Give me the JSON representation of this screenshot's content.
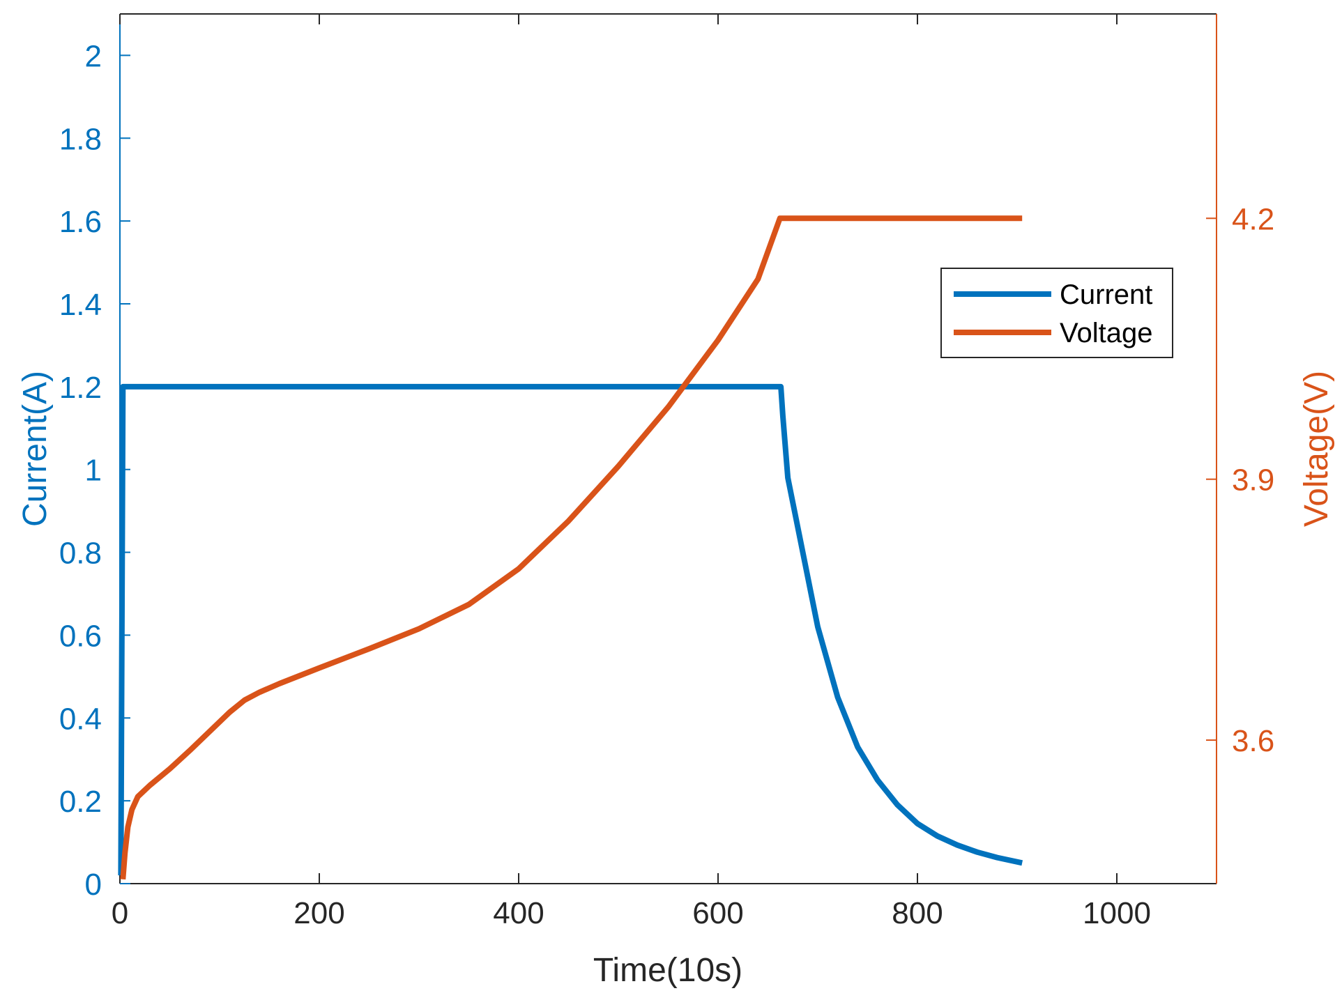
{
  "chart_data": {
    "type": "line",
    "title": "",
    "xlabel": "Time(10s)",
    "ylabel_left": "Current(A)",
    "ylabel_right": "Voltage(V)",
    "xlim": [
      0,
      1100
    ],
    "ylim_left": [
      0,
      2.1
    ],
    "ylim_right": [
      3.435,
      4.435
    ],
    "xticks": [
      0,
      200,
      400,
      600,
      800,
      1000
    ],
    "xtick_labels": [
      "0",
      "200",
      "400",
      "600",
      "800",
      "1000"
    ],
    "yticks_left": [
      0,
      0.2,
      0.4,
      0.6,
      0.8,
      1,
      1.2,
      1.4,
      1.6,
      1.8,
      2
    ],
    "ytick_labels_left": [
      "0",
      "0.2",
      "0.4",
      "0.6",
      "0.8",
      "1",
      "1.2",
      "1.4",
      "1.6",
      "1.8",
      "2"
    ],
    "yticks_right": [
      3.6,
      3.9,
      4.2
    ],
    "ytick_labels_right": [
      "3.6",
      "3.9",
      "4.2"
    ],
    "grid": false,
    "legend_position": "right, upper-middle",
    "series": [
      {
        "name": "Current",
        "axis": "left",
        "color": "#0072BD",
        "x": [
          1,
          3,
          5,
          100,
          200,
          300,
          400,
          500,
          600,
          660,
          663,
          665,
          670,
          680,
          690,
          700,
          720,
          740,
          760,
          780,
          800,
          820,
          840,
          860,
          880,
          905
        ],
        "y": [
          0.02,
          1.2,
          1.2,
          1.2,
          1.2,
          1.2,
          1.2,
          1.2,
          1.2,
          1.2,
          1.2,
          1.13,
          0.98,
          0.86,
          0.74,
          0.62,
          0.45,
          0.33,
          0.25,
          0.19,
          0.145,
          0.115,
          0.093,
          0.076,
          0.063,
          0.05
        ]
      },
      {
        "name": "Voltage",
        "axis": "right",
        "color": "#D95319",
        "x": [
          3,
          5,
          8,
          12,
          18,
          30,
          50,
          70,
          90,
          110,
          125,
          140,
          160,
          200,
          250,
          300,
          350,
          400,
          450,
          500,
          550,
          600,
          640,
          662,
          700,
          800,
          905
        ],
        "y": [
          3.44,
          3.47,
          3.5,
          3.52,
          3.535,
          3.548,
          3.567,
          3.588,
          3.61,
          3.632,
          3.646,
          3.655,
          3.665,
          3.683,
          3.705,
          3.728,
          3.756,
          3.797,
          3.852,
          3.915,
          3.983,
          4.06,
          4.13,
          4.2,
          4.2,
          4.2,
          4.2
        ]
      }
    ]
  }
}
